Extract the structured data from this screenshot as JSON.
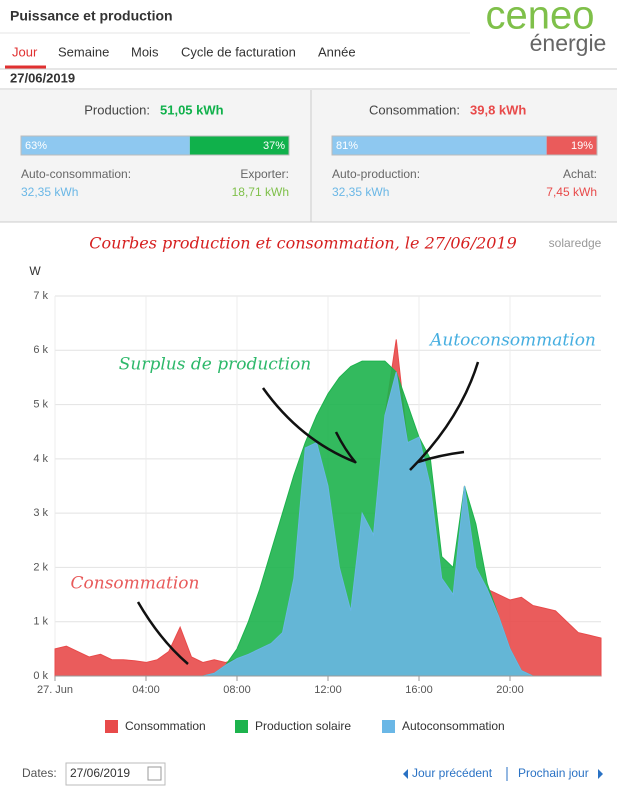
{
  "header": {
    "title": "Puissance et production",
    "logo_top": "ceneo",
    "logo_bottom": "énergie"
  },
  "tabs": [
    "Jour",
    "Semaine",
    "Mois",
    "Cycle de facturation",
    "Année"
  ],
  "date": "27/06/2019",
  "panels": [
    {
      "label": "Production:",
      "total": "51,05 kWh",
      "bar": {
        "values": [
          63,
          37
        ],
        "value_labels": [
          "63%",
          "37%"
        ],
        "colors": [
          "#8ec8f0",
          "#10b14b"
        ]
      },
      "left_label": "Auto-consommation:",
      "left_value": "32,35 kWh",
      "right_label": "Exporter:",
      "right_value": "18,71 kWh",
      "total_color": "#10b14b",
      "left_color": "#6ab7e6",
      "right_color": "#7fc04a"
    },
    {
      "label": "Consommation:",
      "total": "39,8 kWh",
      "bar": {
        "values": [
          81,
          19
        ],
        "value_labels": [
          "81%",
          "19%"
        ],
        "colors": [
          "#8ec8f0",
          "#ea5b5b"
        ]
      },
      "left_label": "Auto-production:",
      "left_value": "32,35 kWh",
      "right_label": "Achat:",
      "right_value": "7,45 kWh",
      "total_color": "#e84a4a",
      "left_color": "#6ab7e6",
      "right_color": "#e84a4a"
    }
  ],
  "chart_data": {
    "type": "area",
    "title": "Courbes production et consommation, le 27/06/2019",
    "brand": "solaredge",
    "y_label": "W",
    "xlim": [
      0,
      24
    ],
    "xticks": [
      {
        "value": 0,
        "label": "27. Jun"
      },
      {
        "value": 4,
        "label": "04:00"
      },
      {
        "value": 8,
        "label": "08:00"
      },
      {
        "value": 12,
        "label": "12:00"
      },
      {
        "value": 16,
        "label": "16:00"
      },
      {
        "value": 20,
        "label": "20:00"
      }
    ],
    "ylim": [
      0,
      7000
    ],
    "yticks": [
      {
        "value": 0,
        "label": "0 k"
      },
      {
        "value": 1000,
        "label": "1 k"
      },
      {
        "value": 2000,
        "label": "2 k"
      },
      {
        "value": 3000,
        "label": "3 k"
      },
      {
        "value": 4000,
        "label": "4 k"
      },
      {
        "value": 5000,
        "label": "5 k"
      },
      {
        "value": 6000,
        "label": "6 k"
      },
      {
        "value": 7000,
        "label": "7 k"
      }
    ],
    "grid": true,
    "x": [
      0,
      0.5,
      1,
      1.5,
      2,
      2.5,
      3,
      3.5,
      4,
      4.5,
      5,
      5.5,
      6,
      6.5,
      7,
      7.5,
      8,
      8.5,
      9,
      9.5,
      10,
      10.5,
      11,
      11.5,
      12,
      12.5,
      13,
      13.5,
      14,
      14.5,
      15,
      15.5,
      16,
      16.5,
      17,
      17.5,
      18,
      18.5,
      19,
      19.5,
      20,
      20.5,
      21,
      21.5,
      22,
      22.5,
      23,
      23.5,
      24
    ],
    "series": [
      {
        "name": "Consommation",
        "color": "#e84a4a",
        "values": [
          500,
          550,
          450,
          350,
          400,
          300,
          300,
          280,
          250,
          300,
          450,
          900,
          350,
          250,
          300,
          250,
          320,
          400,
          500,
          600,
          800,
          1800,
          4200,
          4300,
          3500,
          2000,
          1200,
          3000,
          2600,
          4800,
          6200,
          4300,
          4400,
          3500,
          1800,
          1500,
          3500,
          2000,
          1600,
          1500,
          1400,
          1450,
          1300,
          1250,
          1200,
          1000,
          800,
          750,
          700
        ]
      },
      {
        "name": "Production solaire",
        "color": "#1db34d",
        "values": [
          0,
          0,
          0,
          0,
          0,
          0,
          0,
          0,
          0,
          0,
          0,
          0,
          0,
          0,
          50,
          200,
          500,
          1000,
          1600,
          2300,
          3000,
          3700,
          4300,
          4800,
          5200,
          5500,
          5700,
          5800,
          5800,
          5800,
          5600,
          5000,
          4400,
          4000,
          2200,
          2000,
          3500,
          2800,
          1700,
          1100,
          500,
          100,
          0,
          0,
          0,
          0,
          0,
          0,
          0
        ]
      },
      {
        "name": "Autoconsommation",
        "color": "#6ab7e6",
        "values": [
          0,
          0,
          0,
          0,
          0,
          0,
          0,
          0,
          0,
          0,
          0,
          0,
          0,
          0,
          50,
          200,
          320,
          400,
          500,
          600,
          800,
          1800,
          4200,
          4300,
          3500,
          2000,
          1200,
          3000,
          2600,
          4800,
          5600,
          4300,
          4400,
          3500,
          1800,
          1500,
          3500,
          2000,
          1600,
          1100,
          500,
          100,
          0,
          0,
          0,
          0,
          0,
          0,
          0
        ]
      }
    ],
    "annotations": [
      {
        "text": "Surplus de production",
        "color": "#2db86a"
      },
      {
        "text": "Autoconsommation",
        "color": "#45aee0"
      },
      {
        "text": "Consommation",
        "color": "#e85a5a"
      }
    ]
  },
  "footer": {
    "dates_label": "Dates:",
    "date_value": "27/06/2019",
    "prev": "Jour précédent",
    "next": "Prochain jour"
  }
}
